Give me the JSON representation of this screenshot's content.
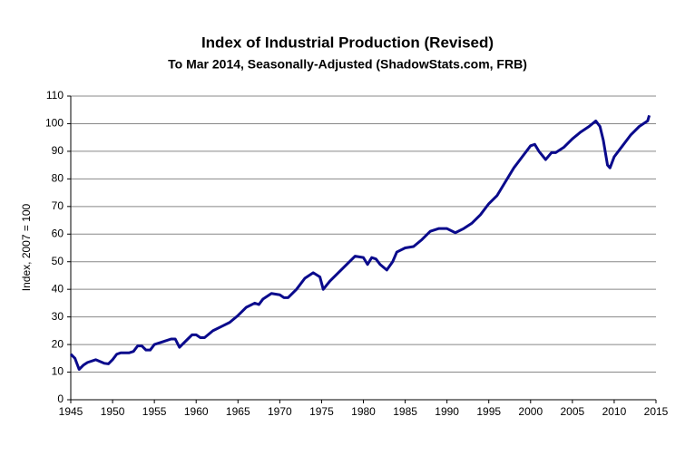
{
  "chart_data": {
    "type": "line",
    "title": "Index of Industrial Production (Revised)",
    "subtitle": "To Mar 2014, Seasonally-Adjusted (ShadowStats.com, FRB)",
    "y_label": "Index, 2007 = 100",
    "x": [
      1945.0,
      1945.5,
      1946.0,
      1946.5,
      1947.0,
      1948.0,
      1949.0,
      1949.5,
      1950.0,
      1950.5,
      1951.0,
      1952.0,
      1952.5,
      1953.0,
      1953.5,
      1954.0,
      1954.5,
      1955.0,
      1956.0,
      1957.0,
      1957.5,
      1958.0,
      1959.0,
      1959.5,
      1960.0,
      1960.5,
      1961.0,
      1962.0,
      1963.0,
      1964.0,
      1965.0,
      1966.0,
      1967.0,
      1967.5,
      1968.0,
      1969.0,
      1970.0,
      1970.5,
      1971.0,
      1972.0,
      1973.0,
      1974.0,
      1974.8,
      1975.2,
      1976.0,
      1977.0,
      1978.0,
      1979.0,
      1980.0,
      1980.5,
      1981.0,
      1981.5,
      1982.0,
      1982.8,
      1983.5,
      1984.0,
      1985.0,
      1986.0,
      1987.0,
      1988.0,
      1989.0,
      1990.0,
      1991.0,
      1992.0,
      1993.0,
      1994.0,
      1995.0,
      1996.0,
      1997.0,
      1998.0,
      1999.0,
      2000.0,
      2000.5,
      2001.0,
      2001.8,
      2002.5,
      2003.0,
      2004.0,
      2005.0,
      2006.0,
      2007.0,
      2007.8,
      2008.3,
      2008.7,
      2009.2,
      2009.5,
      2010.0,
      2011.0,
      2012.0,
      2013.0,
      2014.0,
      2014.2
    ],
    "series": [
      {
        "color": "#0a0a8c",
        "values": [
          16.5,
          15,
          11,
          12.5,
          13.5,
          14.5,
          13.2,
          13,
          14.5,
          16.5,
          17,
          17,
          17.5,
          19.5,
          19.5,
          18,
          18,
          20,
          21,
          22,
          22,
          19,
          22,
          23.5,
          23.5,
          22.5,
          22.5,
          25,
          26.5,
          28,
          30.5,
          33.5,
          35,
          34.5,
          36.5,
          38.5,
          38,
          37,
          37,
          40,
          44,
          46,
          44.5,
          40,
          43,
          46,
          49,
          52,
          51.5,
          49,
          51.5,
          51,
          49,
          47,
          50,
          53.5,
          55,
          55.5,
          58,
          61,
          62,
          62,
          60.5,
          62,
          64,
          67,
          71,
          74,
          79,
          84,
          88,
          92,
          92.5,
          90,
          87,
          89.5,
          89.5,
          91.5,
          94.5,
          97,
          99,
          101,
          99,
          94,
          85,
          84,
          88,
          92,
          96,
          99,
          101,
          103
        ]
      }
    ],
    "xlim": [
      1945,
      2015
    ],
    "xticks": [
      1945,
      1950,
      1955,
      1960,
      1965,
      1970,
      1975,
      1980,
      1985,
      1990,
      1995,
      2000,
      2005,
      2010,
      2015
    ],
    "ylim": [
      0,
      110
    ],
    "yticks": [
      0,
      10,
      20,
      30,
      40,
      50,
      60,
      70,
      80,
      90,
      100,
      110
    ],
    "grid": true
  }
}
